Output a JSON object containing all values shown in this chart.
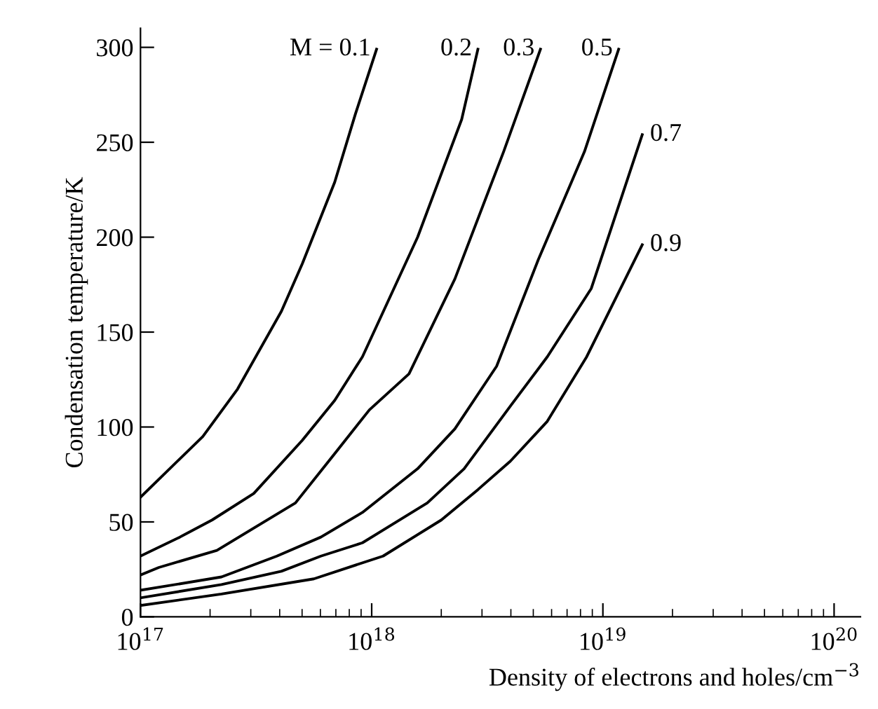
{
  "chart_data": {
    "type": "line",
    "xlabel": "Density of electrons and holes/cm$^{−3}$",
    "ylabel": "Condensation temperature/K",
    "log": "x",
    "xlim": [
      1e+17,
      1.3e+20
    ],
    "ylim": [
      0,
      310
    ],
    "xticks": [
      {
        "value": 1e+17,
        "label": "10$^{17}$"
      },
      {
        "value": 1e+18,
        "label": "10$^{18}$"
      },
      {
        "value": 1e+19,
        "label": "10$^{19}$"
      },
      {
        "value": 1e+20,
        "label": "10$^{20}$"
      }
    ],
    "yticks": [
      0,
      50,
      100,
      150,
      200,
      250,
      300
    ],
    "grid": false,
    "marker": "none",
    "line_style": "solid",
    "series": [
      {
        "color": "#000000",
        "x": [
          1e+17,
          1.86e+17,
          2.63e+17,
          4.07e+17,
          5.01e+17,
          6.92e+17,
          8.51e+17,
          1.05e+18
        ],
        "values": [
          63,
          95,
          120,
          161,
          186,
          229,
          265,
          299
        ]
      },
      {
        "color": "#000000",
        "x": [
          1e+17,
          1.48e+17,
          2.04e+17,
          3.09e+17,
          5.01e+17,
          6.92e+17,
          9.12e+17,
          1.58e+18,
          2.45e+18,
          2.88e+18
        ],
        "values": [
          32,
          42,
          51,
          65,
          93,
          114,
          137,
          200,
          262,
          299
        ]
      },
      {
        "color": "#000000",
        "x": [
          1e+17,
          1.2e+17,
          2.14e+17,
          4.68e+17,
          6.92e+17,
          9.77e+17,
          1.45e+18,
          2.29e+18,
          3.72e+18,
          5.37e+18
        ],
        "values": [
          22,
          26,
          35,
          60,
          86,
          109,
          128,
          178,
          245,
          299
        ]
      },
      {
        "color": "#000000",
        "x": [
          1e+17,
          2.24e+17,
          3.89e+17,
          6.03e+17,
          9.12e+17,
          1.58e+18,
          2.29e+18,
          3.47e+18,
          5.25e+18,
          8.32e+18,
          1.17e+19
        ],
        "values": [
          14,
          21,
          32,
          42,
          55,
          78,
          99,
          132,
          188,
          245,
          299
        ]
      },
      {
        "color": "#000000",
        "x": [
          1e+17,
          2.24e+17,
          4.07e+17,
          6.03e+17,
          9.12e+17,
          1.74e+18,
          2.51e+18,
          3.98e+18,
          5.75e+18,
          8.91e+18,
          1.48e+19
        ],
        "values": [
          10,
          17,
          24,
          32,
          39,
          60,
          78,
          111,
          137,
          173,
          254
        ]
      },
      {
        "color": "#000000",
        "x": [
          1e+17,
          2.24e+17,
          5.62e+17,
          1.12e+18,
          2e+18,
          2.88e+18,
          3.98e+18,
          5.75e+18,
          8.51e+18,
          1.48e+19
        ],
        "values": [
          6,
          12,
          20,
          32,
          51,
          67,
          82,
          103,
          137,
          196
        ]
      }
    ],
    "annotations": [
      {
        "text": "M = 0.1",
        "x": 1.05e+18,
        "y": 299
      },
      {
        "text": "0.2",
        "x": 2.88e+18,
        "y": 299
      },
      {
        "text": "0.3",
        "x": 5.37e+18,
        "y": 299
      },
      {
        "text": "0.5",
        "x": 1.17e+19,
        "y": 299
      },
      {
        "text": "0.7",
        "x": 1.48e+19,
        "y": 254
      },
      {
        "text": "0.9",
        "x": 1.48e+19,
        "y": 196
      }
    ]
  }
}
